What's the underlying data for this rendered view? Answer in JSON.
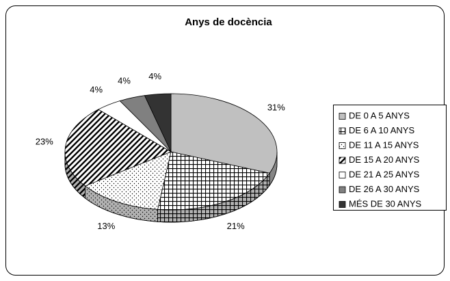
{
  "chart_data": {
    "type": "pie",
    "title": "Anys de docència",
    "categories": [
      "DE 0 A 5 ANYS",
      "DE 6 A 10 ANYS",
      "DE 11 A 15 ANYS",
      "DE 15 A 20 ANYS",
      "DE 21 A 25 ANYS",
      "DE 26 A 30 ANYS",
      "MÉS DE 30 ANYS"
    ],
    "values": [
      31,
      21,
      13,
      23,
      4,
      4,
      4
    ],
    "value_labels": [
      "31%",
      "21%",
      "13%",
      "23%",
      "4%",
      "4%",
      "4%"
    ],
    "colors": [
      "#c0c0c0",
      "#000000",
      "#000000",
      "#000000",
      "#ffffff",
      "#808080",
      "#333333"
    ],
    "patterns": [
      "solid",
      "grid",
      "dots",
      "diagonal",
      "solid",
      "solid",
      "solid"
    ],
    "legend": "right"
  }
}
